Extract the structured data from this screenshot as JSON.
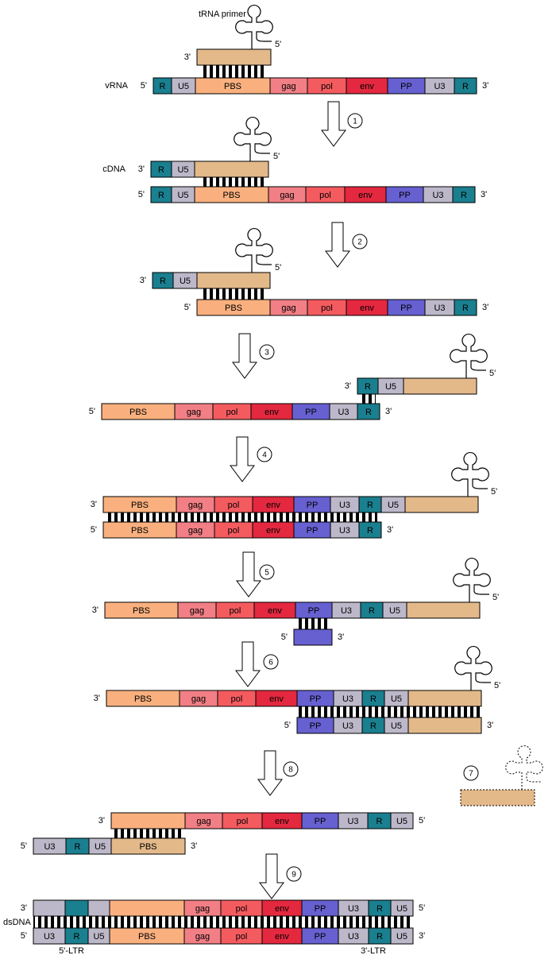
{
  "steps": [
    "1",
    "2",
    "3",
    "4",
    "5",
    "6",
    "7",
    "8",
    "9"
  ],
  "panels": [
    {
      "primer_name": "tRNA primer",
      "loop_end": "5'",
      "strands": [
        {
          "left": "3'",
          "segments": []
        },
        {
          "name": "vRNA",
          "left": "5'",
          "right": "3'",
          "segments": [
            "R",
            "U5",
            "PBS",
            "gag",
            "pol",
            "env",
            "PP",
            "U3",
            "R"
          ]
        }
      ]
    },
    {
      "loop_end": "5'",
      "strands": [
        {
          "name": "cDNA",
          "left": "3'",
          "segments": [
            "R",
            "U5"
          ]
        },
        {
          "left": "5'",
          "right": "3'",
          "segments": [
            "R",
            "U5",
            "PBS",
            "gag",
            "pol",
            "env",
            "PP",
            "U3",
            "R"
          ]
        }
      ]
    },
    {
      "loop_end": "5'",
      "strands": [
        {
          "left": "3'",
          "segments": [
            "R",
            "U5"
          ]
        },
        {
          "left": "5'",
          "right": "3'",
          "segments": [
            "PBS",
            "gag",
            "pol",
            "env",
            "PP",
            "U3",
            "R"
          ]
        }
      ]
    },
    {
      "loop_end": "5'",
      "strands": [
        {
          "left": "3'",
          "segments": [
            "R",
            "U5"
          ]
        },
        {
          "left": "5'",
          "right": "3'",
          "segments": [
            "PBS",
            "gag",
            "pol",
            "env",
            "PP",
            "U3",
            "R"
          ]
        }
      ]
    },
    {
      "loop_end": "5'",
      "strands": [
        {
          "left": "3'",
          "segments": [
            "PBS",
            "gag",
            "pol",
            "env",
            "PP",
            "U3",
            "R",
            "U5"
          ]
        },
        {
          "left": "5'",
          "right": "3'",
          "segments": [
            "PBS",
            "gag",
            "pol",
            "env",
            "PP",
            "U3",
            "R"
          ]
        }
      ]
    },
    {
      "loop_end": "5'",
      "strands": [
        {
          "left": "3'",
          "segments": [
            "PBS",
            "gag",
            "pol",
            "env",
            "PP",
            "U3",
            "R",
            "U5"
          ]
        },
        {
          "left": "5'",
          "right": "3'",
          "segments": []
        }
      ]
    },
    {
      "loop_end": "5'",
      "strands": [
        {
          "left": "3'",
          "segments": [
            "PBS",
            "gag",
            "pol",
            "env",
            "PP",
            "U3",
            "R",
            "U5"
          ]
        },
        {
          "left": "5'",
          "right": "3'",
          "segments": [
            "PP",
            "U3",
            "R",
            "U5"
          ]
        }
      ]
    },
    {
      "strands": [
        {
          "left": "3'",
          "right": "5'",
          "segments": [
            "gag",
            "pol",
            "env",
            "PP",
            "U3",
            "R",
            "U5"
          ]
        },
        {
          "left": "5'",
          "right": "3'",
          "segments": [
            "U3",
            "R",
            "U5",
            "PBS"
          ]
        }
      ]
    },
    {
      "name": "dsDNA",
      "ltr_labels": [
        "5'-LTR",
        "3'-LTR"
      ],
      "strands": [
        {
          "left": "3'",
          "right": "5'",
          "segments": [
            "gag",
            "pol",
            "env",
            "PP",
            "U3",
            "R",
            "U5"
          ]
        },
        {
          "left": "5'",
          "right": "3'",
          "segments": [
            "U3",
            "R",
            "U5",
            "PBS",
            "gag",
            "pol",
            "env",
            "PP",
            "U3",
            "R",
            "U5"
          ]
        }
      ]
    }
  ]
}
